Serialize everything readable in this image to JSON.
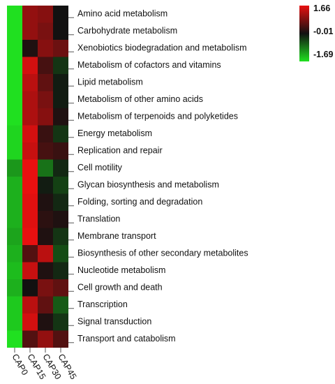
{
  "chart_data": {
    "type": "heatmap",
    "title": "",
    "xlabel": "",
    "ylabel": "",
    "columns": [
      "CAP0",
      "CAP15",
      "CAP30",
      "CAP45"
    ],
    "rows": [
      "Amino acid metabolism",
      "Carbohydrate metabolism",
      "Xenobiotics biodegradation and metabolism",
      "Metabolism of cofactors and vitamins",
      "Lipid metabolism",
      "Metabolism of other amino acids",
      "Metabolism of terpenoids and polyketides",
      "Energy metabolism",
      "Replication and repair",
      "Cell motility",
      "Glycan biosynthesis and metabolism",
      "Folding, sorting and degradation",
      "Translation",
      "Membrane transport",
      "Biosynthesis of other secondary metabolites",
      "Nucleotide metabolism",
      "Cell growth and death",
      "Transcription",
      "Signal transduction",
      "Transport and catabolism"
    ],
    "values": [
      [
        -1.69,
        1.0,
        0.9,
        0.0
      ],
      [
        -1.69,
        1.0,
        0.8,
        0.0
      ],
      [
        -1.69,
        0.1,
        0.9,
        0.7
      ],
      [
        -1.69,
        1.5,
        0.4,
        -0.3
      ],
      [
        -1.69,
        1.3,
        0.6,
        -0.1
      ],
      [
        -1.69,
        1.2,
        0.8,
        -0.1
      ],
      [
        -1.69,
        1.2,
        0.9,
        0.1
      ],
      [
        -1.6,
        1.5,
        0.3,
        -0.3
      ],
      [
        -1.6,
        1.4,
        0.4,
        0.3
      ],
      [
        -1.1,
        1.66,
        -0.8,
        -0.2
      ],
      [
        -1.3,
        1.66,
        -0.1,
        -0.4
      ],
      [
        -1.3,
        1.6,
        0.1,
        -0.2
      ],
      [
        -1.3,
        1.6,
        0.2,
        0.1
      ],
      [
        -1.2,
        1.66,
        0.1,
        -0.3
      ],
      [
        -1.3,
        0.5,
        1.3,
        -0.5
      ],
      [
        -1.4,
        1.4,
        0.1,
        -0.2
      ],
      [
        -1.3,
        0.0,
        0.8,
        0.6
      ],
      [
        -1.5,
        1.3,
        0.6,
        -0.6
      ],
      [
        -1.5,
        1.5,
        0.1,
        -0.3
      ],
      [
        -1.69,
        0.5,
        1.0,
        0.5
      ]
    ],
    "scale": {
      "min": -1.69,
      "mid": -0.01,
      "max": 1.66
    },
    "legend": {
      "ticks": [
        "1.66",
        "-0.01",
        "-1.69"
      ],
      "placement": "top-right",
      "colors": {
        "high": "#e81010",
        "mid": "#111111",
        "low": "#20e020"
      }
    },
    "grid": false
  }
}
